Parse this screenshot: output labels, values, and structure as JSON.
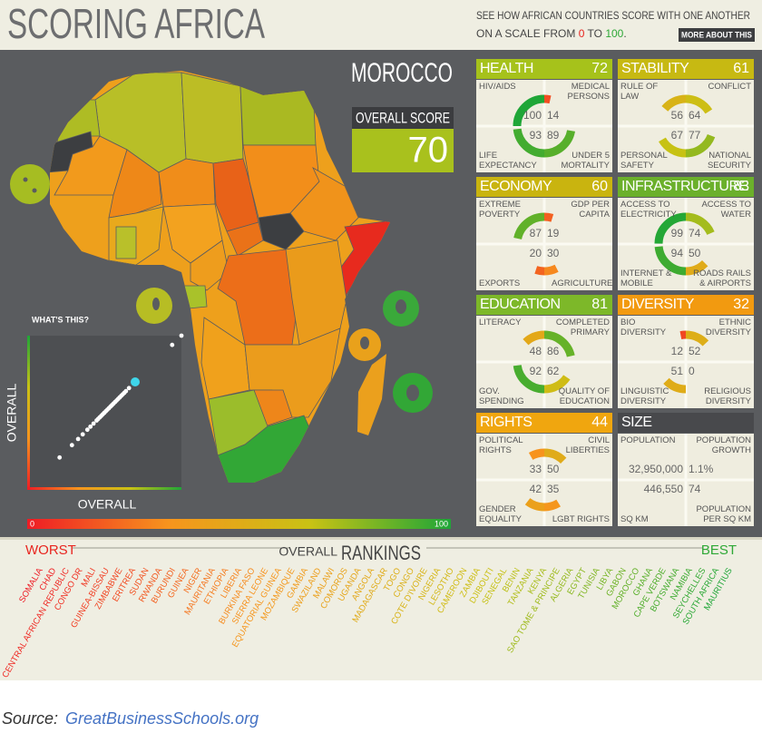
{
  "header": {
    "title": "SCORING AFRICA",
    "tagline_1": "SEE HOW AFRICAN COUNTRIES SCORE WITH ONE ANOTHER",
    "tagline_2": "ON A SCALE FROM",
    "tagline_join": "TO",
    "tagline_end": ".",
    "button": "MORE ABOUT THIS"
  },
  "map": {
    "country": "MOROCCO",
    "overall_label": "OVERALL SCORE",
    "overall_score": 70,
    "overall_color": "#a9c11d",
    "scale": {
      "min": 0,
      "max": 100,
      "colors": [
        "#ee1c25",
        "#f7941d",
        "#c9c214",
        "#1fa637"
      ]
    }
  },
  "scatter": {
    "help": "WHAT'S THIS?",
    "x_label": "OVERALL",
    "y_label": "OVERALL",
    "xlim": [
      0,
      100
    ],
    "ylim": [
      0,
      100
    ],
    "x": [
      21,
      29,
      33,
      36,
      39,
      41,
      43,
      45,
      46,
      47,
      48,
      49,
      50,
      51,
      52,
      53,
      54,
      55,
      56,
      57,
      58,
      59,
      60,
      61,
      62,
      63,
      64,
      66,
      70,
      94,
      100
    ],
    "y": [
      21,
      29,
      33,
      36,
      39,
      41,
      43,
      45,
      46,
      47,
      48,
      49,
      50,
      51,
      52,
      53,
      54,
      55,
      56,
      57,
      58,
      59,
      60,
      61,
      62,
      63,
      64,
      66,
      70,
      94,
      100
    ],
    "point_color": "#ffffff",
    "highlight_color": "#3fd6ea",
    "highlight_index": 28
  },
  "cards": [
    {
      "title": "HEALTH",
      "score": 72,
      "color": "#a6c21b",
      "metrics": [
        {
          "label": "HIV/AIDS",
          "value": 100
        },
        {
          "label": "MEDICAL PERSONS",
          "value": 14
        },
        {
          "label": "LIFE EXPECTANCY",
          "value": 93
        },
        {
          "label": "UNDER 5 MORTALITY",
          "value": 89
        }
      ]
    },
    {
      "title": "STABILITY",
      "score": 61,
      "color": "#c7b912",
      "metrics": [
        {
          "label": "RULE OF LAW",
          "value": 56
        },
        {
          "label": "CONFLICT",
          "value": 64
        },
        {
          "label": "PERSONAL SAFETY",
          "value": 67
        },
        {
          "label": "NATIONAL SECURITY",
          "value": 77
        }
      ]
    },
    {
      "title": "ECONOMY",
      "score": 60,
      "color": "#c9b40f",
      "metrics": [
        {
          "label": "EXTREME POVERTY",
          "value": 87
        },
        {
          "label": "GDP PER CAPITA",
          "value": 19
        },
        {
          "label": "EXPORTS",
          "value": 20
        },
        {
          "label": "AGRICULTURE",
          "value": 30
        }
      ]
    },
    {
      "title": "INFRASTRUCTURE",
      "score": 83,
      "color": "#6bb02b",
      "metrics": [
        {
          "label": "ACCESS TO ELECTRICITY",
          "value": 99
        },
        {
          "label": "ACCESS TO WATER",
          "value": 74
        },
        {
          "label": "INTERNET & MOBILE",
          "value": 94
        },
        {
          "label": "ROADS RAILS & AIRPORTS",
          "value": 50
        }
      ]
    },
    {
      "title": "EDUCATION",
      "score": 81,
      "color": "#7db829",
      "metrics": [
        {
          "label": "LITERACY",
          "value": 48
        },
        {
          "label": "COMPLETED PRIMARY",
          "value": 86
        },
        {
          "label": "GOV. SPENDING",
          "value": 92
        },
        {
          "label": "QUALITY OF EDUCATION",
          "value": 62
        }
      ]
    },
    {
      "title": "DIVERSITY",
      "score": 32,
      "color": "#f29a10",
      "metrics": [
        {
          "label": "BIO DIVERSITY",
          "value": 12
        },
        {
          "label": "ETHNIC DIVERSITY",
          "value": 52
        },
        {
          "label": "LINGUISTIC DIVERSITY",
          "value": 51
        },
        {
          "label": "RELIGIOUS DIVERSITY",
          "value": 0
        }
      ]
    },
    {
      "title": "RIGHTS",
      "score": 44,
      "color": "#f0a60f",
      "metrics": [
        {
          "label": "POLITICAL RIGHTS",
          "value": 33
        },
        {
          "label": "CIVIL LIBERTIES",
          "value": 50
        },
        {
          "label": "GENDER EQUALITY",
          "value": 42
        },
        {
          "label": "LGBT RIGHTS",
          "value": 35
        }
      ]
    },
    {
      "title": "SIZE",
      "color": "#48494c",
      "metrics": [
        {
          "label": "POPULATION",
          "value": "32,950,000"
        },
        {
          "label": "POPULATION GROWTH",
          "value": "1.1%"
        },
        {
          "label": "SQ KM",
          "value": "446,550"
        },
        {
          "label": "POPULATION PER SQ KM",
          "value": 74
        }
      ]
    }
  ],
  "rankings": {
    "worst": "WORST",
    "title_small": "OVERALL",
    "title": "RANKINGS",
    "best": "BEST",
    "countries": [
      "SOMALIA",
      "CHAD",
      "CENTRAL AFRICAN REPUBLIC",
      "CONGO DR",
      "MALI",
      "GUINEA-BISSAU",
      "ZIMBABWE",
      "ERITREA",
      "SUDAN",
      "RWANDA",
      "BURUNDI",
      "GUINEA",
      "NIGER",
      "MAURITANIA",
      "ETHIOPIA",
      "LIBERIA",
      "BURKINA FASO",
      "SIERRA LEONE",
      "EQUATORIAL GUINEA",
      "MOZAMBIQUE",
      "GAMBIA",
      "SWAZILAND",
      "MALAWI",
      "COMOROS",
      "UGANDA",
      "ANGOLA",
      "MADAGASCAR",
      "TOGO",
      "CONGO",
      "COTE D'IVOIRE",
      "NIGERIA",
      "LESOTHO",
      "CAMEROON",
      "ZAMBIA",
      "DJIBOUTI",
      "SENEGAL",
      "BENIN",
      "TANZANIA",
      "KENYA",
      "SAO TOME & PRINCIPE",
      "ALGERIA",
      "EGYPT",
      "TUNISIA",
      "LIBYA",
      "GABON",
      "MOROCCO",
      "GHANA",
      "CAPE VERDE",
      "BOTSWANA",
      "NAMIBIA",
      "SEYCHELLES",
      "SOUTH AFRICA",
      "MAURITIUS"
    ]
  },
  "source": {
    "prefix": "Source:",
    "link": "GreatBusinessSchools.org"
  }
}
